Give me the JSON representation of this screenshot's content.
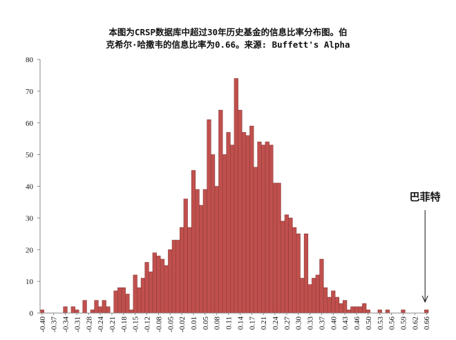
{
  "chart_data": {
    "type": "bar",
    "title_lines": [
      "本图为CRSP数据库中超过30年历史基金的信息比率分布图。伯",
      "克希尔·哈撒韦的信息比率为0.66。来源: Buffett's Alpha"
    ],
    "xlabel": "",
    "ylabel": "",
    "ylim": [
      0,
      80
    ],
    "yticks": [
      0,
      10,
      20,
      30,
      40,
      50,
      60,
      70,
      80
    ],
    "xlim": [
      -0.4,
      0.66
    ],
    "x_tick_labels": [
      "-0.40",
      "-0.37",
      "-0.34",
      "-0.31",
      "-0.28",
      "-0.24",
      "-0.21",
      "-0.18",
      "-0.15",
      "-0.12",
      "-0.08",
      "-0.05",
      "-0.02",
      "0.01",
      "0.05",
      "0.08",
      "0.11",
      "0.14",
      "0.17",
      "0.21",
      "0.24",
      "0.27",
      "0.30",
      "0.33",
      "0.37",
      "0.40",
      "0.43",
      "0.46",
      "0.50",
      "0.53",
      "0.56",
      "0.59",
      "0.62",
      "0.66"
    ],
    "values": [
      1,
      0,
      0,
      0,
      0,
      0,
      2,
      0,
      2,
      1,
      0,
      4,
      0,
      1,
      4,
      2,
      4,
      2,
      0,
      7,
      8,
      8,
      6,
      1,
      12,
      8,
      11,
      16,
      13,
      19,
      18,
      17,
      15,
      20,
      23,
      23,
      27,
      36,
      27,
      45,
      39,
      34,
      39,
      61,
      50,
      40,
      64,
      50,
      57,
      53,
      74,
      64,
      57,
      56,
      59,
      46,
      54,
      53,
      54,
      53,
      41,
      41,
      29,
      31,
      30,
      27,
      25,
      11,
      25,
      9,
      11,
      12,
      17,
      8,
      5,
      7,
      5,
      3,
      4,
      1,
      2,
      2,
      2,
      3,
      1,
      0,
      0,
      1,
      0,
      1,
      0,
      0,
      0,
      1,
      0,
      0,
      0,
      0,
      0,
      1
    ],
    "annotation": {
      "text": "巴菲特",
      "x": 0.66
    },
    "bar_color": "#c0504d",
    "bar_edge_color": "#8c3b3b",
    "grid": false,
    "legend": "none"
  }
}
